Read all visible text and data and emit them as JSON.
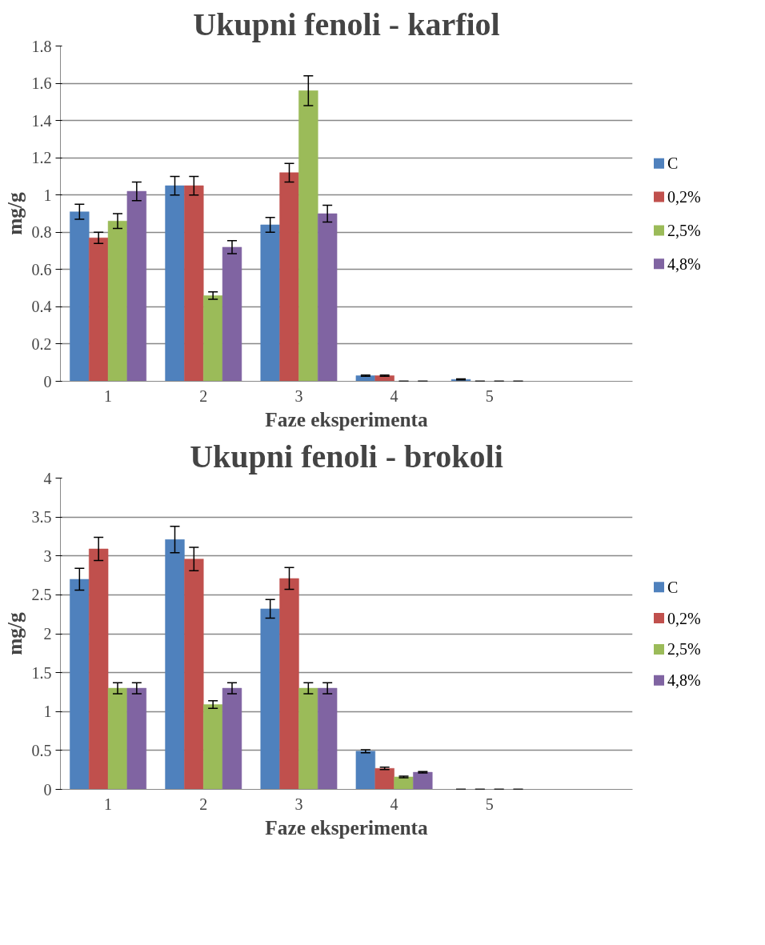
{
  "chart_data": [
    {
      "type": "bar",
      "title": "Ukupni fenoli - karfiol",
      "xlabel": "Faze eksperimenta",
      "ylabel": "mg/g",
      "categories": [
        "1",
        "2",
        "3",
        "4",
        "5",
        null
      ],
      "ylim": [
        0,
        1.8
      ],
      "yticks": [
        0,
        0.2,
        0.4,
        0.6,
        0.8,
        1,
        1.2,
        1.4,
        1.6,
        1.8
      ],
      "grid": "y",
      "legend": "right",
      "series": [
        {
          "name": "C",
          "color": "#4f81bd",
          "values": [
            0.91,
            1.05,
            0.84,
            0.03,
            0.01,
            null
          ],
          "errors": [
            0.04,
            0.05,
            0.04,
            0.003,
            0.003,
            null
          ]
        },
        {
          "name": "0,2%",
          "color": "#c0504d",
          "values": [
            0.77,
            1.05,
            1.12,
            0.03,
            0,
            null
          ],
          "errors": [
            0.03,
            0.05,
            0.05,
            0.003,
            0,
            null
          ]
        },
        {
          "name": "2,5%",
          "color": "#9bbb59",
          "values": [
            0.86,
            0.46,
            1.56,
            0,
            0,
            null
          ],
          "errors": [
            0.04,
            0.02,
            0.08,
            0,
            0,
            null
          ]
        },
        {
          "name": "4,8%",
          "color": "#8064a2",
          "values": [
            1.02,
            0.72,
            0.9,
            0,
            0,
            null
          ],
          "errors": [
            0.05,
            0.035,
            0.045,
            0,
            0,
            null
          ]
        }
      ]
    },
    {
      "type": "bar",
      "title": "Ukupni fenoli - brokoli",
      "xlabel": "Faze eksperimenta",
      "ylabel": "mg/g",
      "categories": [
        "1",
        "2",
        "3",
        "4",
        "5",
        null
      ],
      "ylim": [
        0,
        4
      ],
      "yticks": [
        0,
        0.5,
        1,
        1.5,
        2,
        2.5,
        3,
        3.5,
        4
      ],
      "grid": "y",
      "legend": "right",
      "series": [
        {
          "name": "C",
          "color": "#4f81bd",
          "values": [
            2.7,
            3.21,
            2.32,
            0.49,
            0,
            null
          ],
          "errors": [
            0.14,
            0.17,
            0.12,
            0.02,
            0,
            null
          ]
        },
        {
          "name": "0,2%",
          "color": "#c0504d",
          "values": [
            3.09,
            2.96,
            2.71,
            0.27,
            0,
            null
          ],
          "errors": [
            0.15,
            0.15,
            0.14,
            0.015,
            0,
            null
          ]
        },
        {
          "name": "2,5%",
          "color": "#9bbb59",
          "values": [
            1.3,
            1.09,
            1.3,
            0.16,
            0,
            null
          ],
          "errors": [
            0.07,
            0.05,
            0.07,
            0.01,
            0,
            null
          ]
        },
        {
          "name": "4,8%",
          "color": "#8064a2",
          "values": [
            1.3,
            1.3,
            1.3,
            0.22,
            0,
            null
          ],
          "errors": [
            0.07,
            0.07,
            0.07,
            0.01,
            0,
            null
          ]
        }
      ]
    }
  ]
}
